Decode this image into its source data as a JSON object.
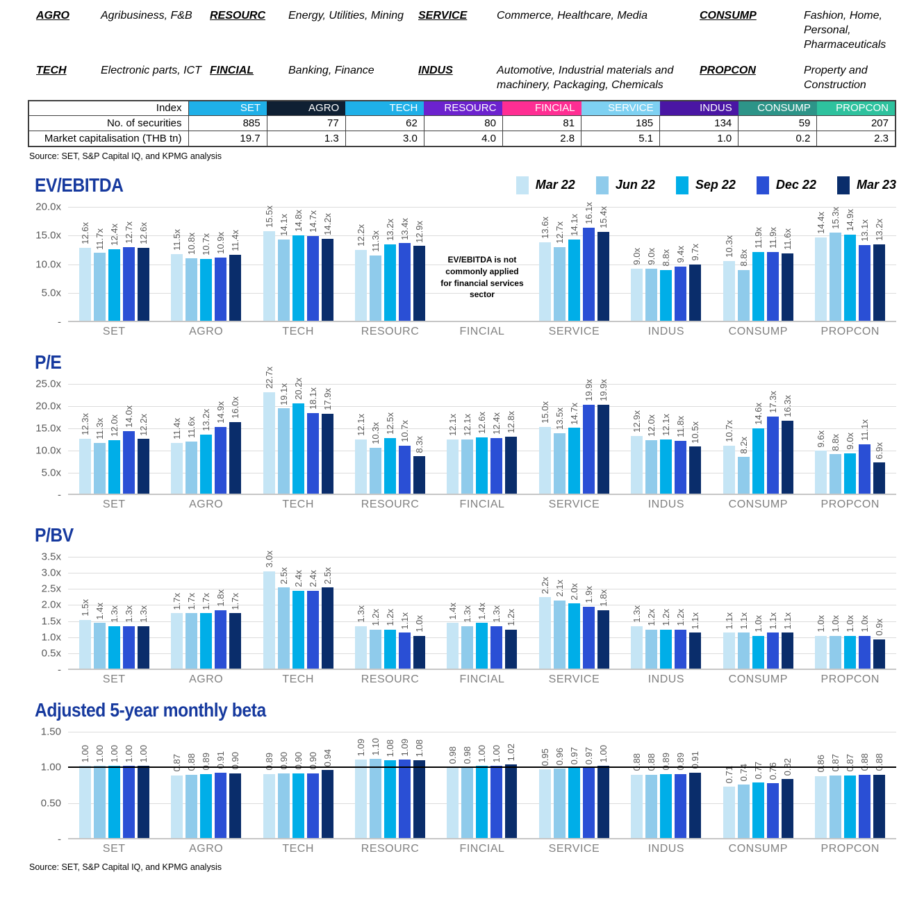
{
  "glossary": [
    {
      "term": "AGRO",
      "desc": "Agribusiness, F&B"
    },
    {
      "term": "RESOURC",
      "desc": "Energy, Utilities, Mining"
    },
    {
      "term": "SERVICE",
      "desc": "Commerce, Healthcare, Media"
    },
    {
      "term": "CONSUMP",
      "desc": "Fashion, Home, Personal, Pharmaceuticals"
    },
    {
      "term": "TECH",
      "desc": "Electronic parts, ICT"
    },
    {
      "term": "FINCIAL",
      "desc": "Banking, Finance"
    },
    {
      "term": "INDUS",
      "desc": "Automotive, Industrial materials and machinery, Packaging, Chemicals"
    },
    {
      "term": "PROPCON",
      "desc": "Property and Construction"
    }
  ],
  "table": {
    "row_labels": [
      "Index",
      "No. of securities",
      "Market capitalisation (THB tn)"
    ],
    "columns": [
      {
        "name": "SET",
        "color": "#1FB0E8",
        "securities": "885",
        "market_cap": "19.7"
      },
      {
        "name": "AGRO",
        "color": "#0F2033",
        "securities": "77",
        "market_cap": "1.3"
      },
      {
        "name": "TECH",
        "color": "#1FB0E8",
        "securities": "62",
        "market_cap": "3.0"
      },
      {
        "name": "RESOURC",
        "color": "#6C22CE",
        "securities": "80",
        "market_cap": "4.0"
      },
      {
        "name": "FINCIAL",
        "color": "#FF2E93",
        "securities": "81",
        "market_cap": "2.8"
      },
      {
        "name": "SERVICE",
        "color": "#7ED1F2",
        "securities": "185",
        "market_cap": "5.1"
      },
      {
        "name": "INDUS",
        "color": "#4A16A4",
        "securities": "134",
        "market_cap": "1.0"
      },
      {
        "name": "CONSUMP",
        "color": "#2D9488",
        "securities": "59",
        "market_cap": "0.2"
      },
      {
        "name": "PROPCON",
        "color": "#2EC29E",
        "securities": "207",
        "market_cap": "2.3"
      }
    ]
  },
  "source_note": "Source: SET, S&P Capital IQ, and KPMG analysis",
  "legend": {
    "items": [
      {
        "label": "Mar 22",
        "color": "#C5E5F5"
      },
      {
        "label": "Jun 22",
        "color": "#8FCBEB"
      },
      {
        "label": "Sep 22",
        "color": "#00AEE8"
      },
      {
        "label": "Dec 22",
        "color": "#2A4FD5"
      },
      {
        "label": "Mar 23",
        "color": "#0A2D6B"
      }
    ],
    "position": "top-right"
  },
  "chart_data": [
    {
      "type": "bar",
      "title": "EV/EBITDA",
      "categories": [
        "SET",
        "AGRO",
        "TECH",
        "RESOURC",
        "FINCIAL",
        "SERVICE",
        "INDUS",
        "CONSUMP",
        "PROPCON"
      ],
      "series": [
        {
          "name": "Mar 22",
          "values": [
            12.6,
            11.5,
            15.5,
            12.2,
            null,
            13.6,
            9.0,
            10.3,
            14.4
          ]
        },
        {
          "name": "Jun 22",
          "values": [
            11.7,
            10.8,
            14.1,
            11.3,
            null,
            12.7,
            9.0,
            8.8,
            15.3
          ]
        },
        {
          "name": "Sep 22",
          "values": [
            12.4,
            10.7,
            14.8,
            13.2,
            null,
            14.1,
            8.8,
            11.9,
            14.9
          ]
        },
        {
          "name": "Dec 22",
          "values": [
            12.7,
            10.9,
            14.7,
            13.4,
            null,
            16.1,
            9.4,
            11.9,
            13.1
          ]
        },
        {
          "name": "Mar 23",
          "values": [
            12.6,
            11.4,
            14.2,
            12.9,
            null,
            15.4,
            9.7,
            11.6,
            13.2
          ]
        }
      ],
      "ylim": [
        0,
        20
      ],
      "ytick_values": [
        20,
        15,
        10,
        5
      ],
      "ytick_labels": [
        "20.0x",
        "15.0x",
        "10.0x",
        "5.0x"
      ],
      "ytick_zero_label": "-",
      "label_decimals": 1,
      "label_suffix": "x",
      "grid": true,
      "annotation": "EV/EBITDA is not commonly applied for financial services sector"
    },
    {
      "type": "bar",
      "title": "P/E",
      "categories": [
        "SET",
        "AGRO",
        "TECH",
        "RESOURC",
        "FINCIAL",
        "SERVICE",
        "INDUS",
        "CONSUMP",
        "PROPCON"
      ],
      "series": [
        {
          "name": "Mar 22",
          "values": [
            12.3,
            11.4,
            22.7,
            12.1,
            12.1,
            15.0,
            12.9,
            10.7,
            9.6
          ]
        },
        {
          "name": "Jun 22",
          "values": [
            11.3,
            11.6,
            19.1,
            10.3,
            12.1,
            13.5,
            12.0,
            8.2,
            8.8
          ]
        },
        {
          "name": "Sep 22",
          "values": [
            12.0,
            13.2,
            20.2,
            12.5,
            12.6,
            14.7,
            12.1,
            14.6,
            9.0
          ]
        },
        {
          "name": "Dec 22",
          "values": [
            14.0,
            14.9,
            18.1,
            10.7,
            12.4,
            19.9,
            11.8,
            17.3,
            11.1
          ]
        },
        {
          "name": "Mar 23",
          "values": [
            12.2,
            16.0,
            17.9,
            8.3,
            12.8,
            19.9,
            10.5,
            16.3,
            6.9
          ]
        }
      ],
      "ylim": [
        0,
        25
      ],
      "ytick_values": [
        25,
        20,
        15,
        10,
        5
      ],
      "ytick_labels": [
        "25.0x",
        "20.0x",
        "15.0x",
        "10.0x",
        "5.0x"
      ],
      "ytick_zero_label": "-",
      "label_decimals": 1,
      "label_suffix": "x",
      "grid": true
    },
    {
      "type": "bar",
      "title": "P/BV",
      "categories": [
        "SET",
        "AGRO",
        "TECH",
        "RESOURC",
        "FINCIAL",
        "SERVICE",
        "INDUS",
        "CONSUMP",
        "PROPCON"
      ],
      "series": [
        {
          "name": "Mar 22",
          "values": [
            1.5,
            1.7,
            3.0,
            1.3,
            1.4,
            2.2,
            1.3,
            1.1,
            1.0
          ]
        },
        {
          "name": "Jun 22",
          "values": [
            1.4,
            1.7,
            2.5,
            1.2,
            1.3,
            2.1,
            1.2,
            1.1,
            1.0
          ]
        },
        {
          "name": "Sep 22",
          "values": [
            1.3,
            1.7,
            2.4,
            1.2,
            1.4,
            2.0,
            1.2,
            1.0,
            1.0
          ]
        },
        {
          "name": "Dec 22",
          "values": [
            1.3,
            1.8,
            2.4,
            1.1,
            1.3,
            1.9,
            1.2,
            1.1,
            1.0
          ]
        },
        {
          "name": "Mar 23",
          "values": [
            1.3,
            1.7,
            2.5,
            1.0,
            1.2,
            1.8,
            1.1,
            1.1,
            0.9
          ]
        }
      ],
      "ylim": [
        0,
        3.5
      ],
      "ytick_values": [
        3.5,
        3.0,
        2.5,
        2.0,
        1.5,
        1.0,
        0.5
      ],
      "ytick_labels": [
        "3.5x",
        "3.0x",
        "2.5x",
        "2.0x",
        "1.5x",
        "1.0x",
        "0.5x"
      ],
      "ytick_zero_label": "-",
      "label_decimals": 1,
      "label_suffix": "x",
      "grid": true
    },
    {
      "type": "bar",
      "title": "Adjusted 5-year monthly beta",
      "categories": [
        "SET",
        "AGRO",
        "TECH",
        "RESOURC",
        "FINCIAL",
        "SERVICE",
        "INDUS",
        "CONSUMP",
        "PROPCON"
      ],
      "series": [
        {
          "name": "Mar 22",
          "values": [
            1.0,
            0.87,
            0.89,
            1.09,
            0.98,
            0.95,
            0.88,
            0.71,
            0.86
          ]
        },
        {
          "name": "Jun 22",
          "values": [
            1.0,
            0.88,
            0.9,
            1.1,
            0.98,
            0.96,
            0.88,
            0.74,
            0.87
          ]
        },
        {
          "name": "Sep 22",
          "values": [
            1.0,
            0.89,
            0.9,
            1.08,
            1.0,
            0.97,
            0.89,
            0.77,
            0.87
          ]
        },
        {
          "name": "Dec 22",
          "values": [
            1.0,
            0.91,
            0.9,
            1.09,
            1.0,
            0.97,
            0.89,
            0.76,
            0.88
          ]
        },
        {
          "name": "Mar 23",
          "values": [
            1.0,
            0.9,
            0.94,
            1.08,
            1.02,
            1.0,
            0.91,
            0.82,
            0.88
          ]
        }
      ],
      "ylim": [
        0,
        1.5
      ],
      "ytick_values": [
        1.5,
        1.0,
        0.5
      ],
      "ytick_labels": [
        "1.50",
        "1.00",
        "0.50"
      ],
      "ytick_zero_label": "-",
      "ref_line": 1.0,
      "label_decimals": 2,
      "label_suffix": "",
      "grid": true
    }
  ]
}
